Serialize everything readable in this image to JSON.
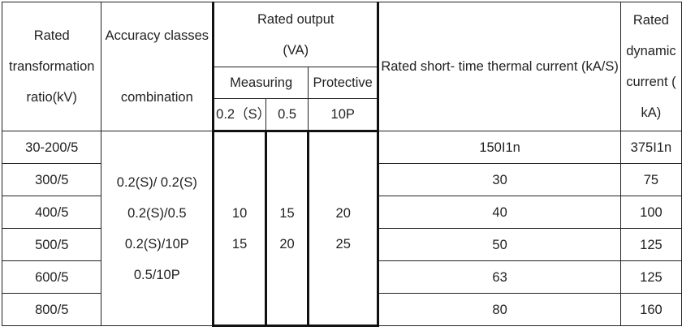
{
  "headers": {
    "ratio": "Rated\ntransformation\nratio(kV)",
    "accuracy": "Accuracy classes\n\ncombination",
    "rated_output": "Rated output\n(VA)",
    "measuring": "Measuring",
    "protective": "Protective",
    "sub_02s": "0.2（S）",
    "sub_05": "0.5",
    "sub_10p": "10P",
    "thermal": "Rated short-\ntime thermal\ncurrent\n(kA/S)",
    "dynamic": "Rated\ndynamic\ncurrent (\nkA)"
  },
  "rows": [
    {
      "ratio": "30-200/5",
      "thermal": "150I1n",
      "dynamic": "375I1n"
    },
    {
      "ratio": "300/5",
      "thermal": "30",
      "dynamic": "75"
    },
    {
      "ratio": "400/5",
      "thermal": "40",
      "dynamic": "100"
    },
    {
      "ratio": "500/5",
      "thermal": "50",
      "dynamic": "125"
    },
    {
      "ratio": "600/5",
      "thermal": "63",
      "dynamic": "125"
    },
    {
      "ratio": "800/5",
      "thermal": "80",
      "dynamic": "160"
    }
  ],
  "merged": {
    "accuracy_values": "0.2(S)/ 0.2(S)\n0.2(S)/0.5\n0.2(S)/10P\n0.5/10P",
    "col_02s": "10\n15",
    "col_05": "15\n20",
    "col_10p": "20\n25"
  }
}
